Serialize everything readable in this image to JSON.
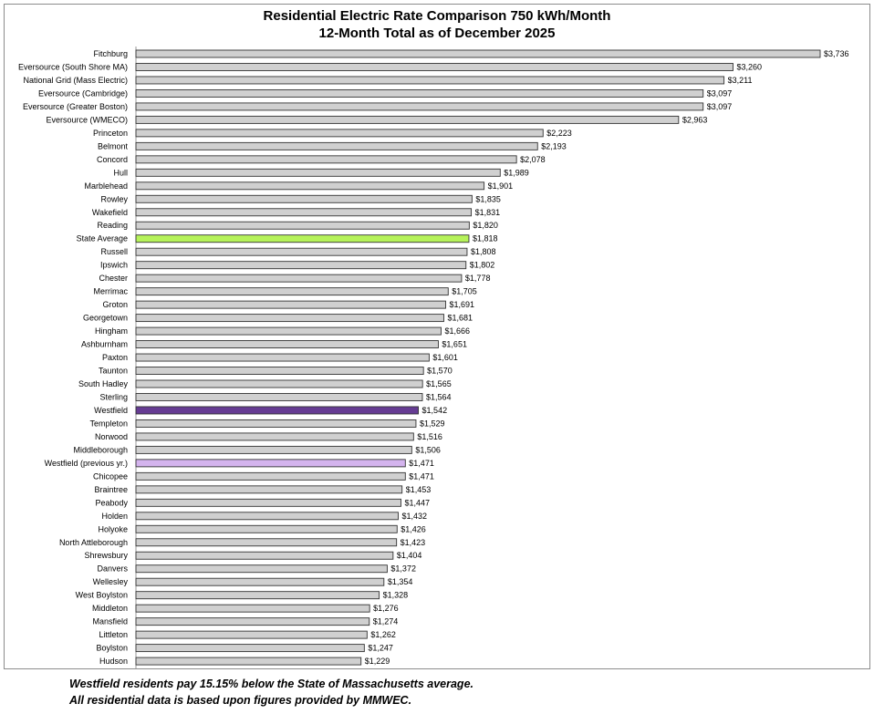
{
  "chart_data": {
    "type": "bar",
    "orientation": "horizontal",
    "title": "Residential Electric Rate Comparison 750 kWh/Month",
    "subtitle": "12-Month Total as of December 2025",
    "xlabel": "",
    "ylabel": "",
    "grid": false,
    "legend": "none",
    "value_prefix": "$",
    "categories": [
      "Fitchburg",
      "Eversource (South Shore MA)",
      "National Grid (Mass Electric)",
      "Eversource (Cambridge)",
      "Eversource (Greater Boston)",
      "Eversource (WMECO)",
      "Princeton",
      "Belmont",
      "Concord",
      "Hull",
      "Marblehead",
      "Rowley",
      "Wakefield",
      "Reading",
      "State Average",
      "Russell",
      "Ipswich",
      "Chester",
      "Merrimac",
      "Groton",
      "Georgetown",
      "Hingham",
      "Ashburnham",
      "Paxton",
      "Taunton",
      "South Hadley",
      "Sterling",
      "Westfield",
      "Templeton",
      "Norwood",
      "Middleborough",
      "Westfield (previous yr.)",
      "Chicopee",
      "Braintree",
      "Peabody",
      "Holden",
      "Holyoke",
      "North Attleborough",
      "Shrewsbury",
      "Danvers",
      "Wellesley",
      "West Boylston",
      "Middleton",
      "Mansfield",
      "Littleton",
      "Boylston",
      "Hudson"
    ],
    "values": [
      3736,
      3260,
      3211,
      3097,
      3097,
      2963,
      2223,
      2193,
      2078,
      1989,
      1901,
      1835,
      1831,
      1820,
      1818,
      1808,
      1802,
      1778,
      1705,
      1691,
      1681,
      1666,
      1651,
      1601,
      1570,
      1565,
      1564,
      1542,
      1529,
      1516,
      1506,
      1471,
      1471,
      1453,
      1447,
      1432,
      1426,
      1423,
      1404,
      1372,
      1354,
      1328,
      1276,
      1274,
      1262,
      1247,
      1229
    ],
    "value_labels": [
      "$3,736",
      "$3,260",
      "$3,211",
      "$3,097",
      "$3,097",
      "$2,963",
      "$2,223",
      "$2,193",
      "$2,078",
      "$1,989",
      "$1,901",
      "$1,835",
      "$1,831",
      "$1,820",
      "$1,818",
      "$1,808",
      "$1,802",
      "$1,778",
      "$1,705",
      "$1,691",
      "$1,681",
      "$1,666",
      "$1,651",
      "$1,601",
      "$1,570",
      "$1,565",
      "$1,564",
      "$1,542",
      "$1,529",
      "$1,516",
      "$1,506",
      "$1,471",
      "$1,471",
      "$1,453",
      "$1,447",
      "$1,432",
      "$1,426",
      "$1,423",
      "$1,404",
      "$1,372",
      "$1,354",
      "$1,328",
      "$1,276",
      "$1,274",
      "$1,262",
      "$1,247",
      "$1,229"
    ],
    "xlim": [
      0,
      3736
    ],
    "colors": {
      "default": "#d0d0d0",
      "outline": "#333333",
      "State Average": "#b6f35a",
      "Westfield": "#663c93",
      "Westfield (previous yr.)": "#d4b4ee"
    }
  },
  "footnotes": [
    "Westfield residents pay 15.15% below the State of Massachusetts average.",
    "All residential data is based upon figures provided by MMWEC."
  ]
}
